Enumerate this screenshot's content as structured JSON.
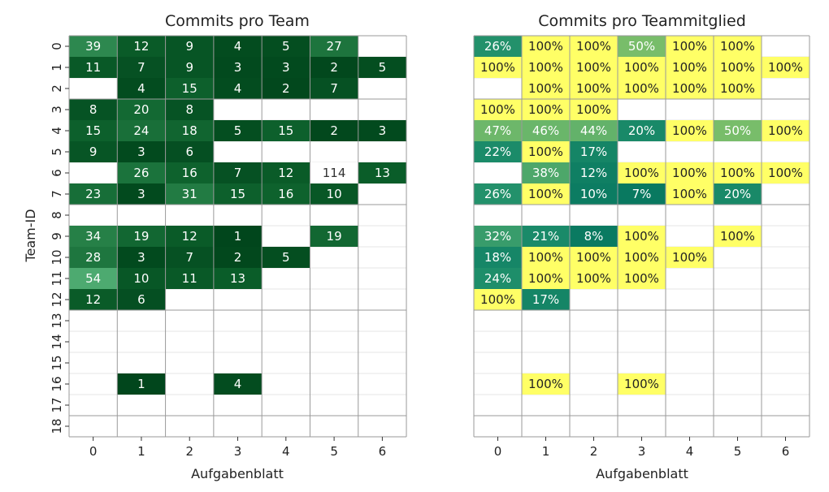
{
  "chart_data": [
    {
      "type": "heatmap",
      "title": "Commits pro Team",
      "xlabel": "Aufgabenblatt",
      "ylabel": "Team-ID",
      "x_categories": [
        "0",
        "1",
        "2",
        "3",
        "4",
        "5",
        "6"
      ],
      "y_categories": [
        "0",
        "1",
        "2",
        "3",
        "4",
        "5",
        "6",
        "7",
        "8",
        "9",
        "10",
        "11",
        "12",
        "13",
        "14",
        "15",
        "16",
        "17",
        "18"
      ],
      "colormap": "greens",
      "values": [
        [
          39,
          12,
          9,
          4,
          5,
          27,
          null
        ],
        [
          11,
          7,
          9,
          3,
          3,
          2,
          5
        ],
        [
          null,
          4,
          15,
          4,
          2,
          7,
          null
        ],
        [
          8,
          20,
          8,
          null,
          null,
          null,
          null
        ],
        [
          15,
          24,
          18,
          5,
          15,
          2,
          3
        ],
        [
          9,
          3,
          6,
          null,
          null,
          null,
          null
        ],
        [
          null,
          26,
          16,
          7,
          12,
          114,
          13
        ],
        [
          23,
          3,
          31,
          15,
          16,
          10,
          null
        ],
        [
          null,
          null,
          null,
          null,
          null,
          null,
          null
        ],
        [
          34,
          19,
          12,
          1,
          null,
          19,
          null
        ],
        [
          28,
          3,
          7,
          2,
          5,
          null,
          null
        ],
        [
          54,
          10,
          11,
          13,
          null,
          null,
          null
        ],
        [
          12,
          6,
          null,
          null,
          null,
          null,
          null
        ],
        [
          null,
          null,
          null,
          null,
          null,
          null,
          null
        ],
        [
          null,
          null,
          null,
          null,
          null,
          null,
          null
        ],
        [
          null,
          null,
          null,
          null,
          null,
          null,
          null
        ],
        [
          null,
          1,
          null,
          4,
          null,
          null,
          null
        ],
        [
          null,
          null,
          null,
          null,
          null,
          null,
          null
        ],
        [
          null,
          null,
          null,
          null,
          null,
          null,
          null
        ]
      ],
      "group_separators_after_rows": [
        2,
        7,
        12,
        17
      ]
    },
    {
      "type": "heatmap",
      "title": "Commits pro Teammitglied",
      "xlabel": "Aufgabenblatt",
      "ylabel": "",
      "x_categories": [
        "0",
        "1",
        "2",
        "3",
        "4",
        "5",
        "6"
      ],
      "y_categories": [
        "0",
        "1",
        "2",
        "3",
        "4",
        "5",
        "6",
        "7",
        "8",
        "9",
        "10",
        "11",
        "12",
        "13",
        "14",
        "15",
        "16",
        "17",
        "18"
      ],
      "colormap": "yellow-green",
      "value_format": "percent",
      "values": [
        [
          26,
          100,
          100,
          50,
          100,
          100,
          null
        ],
        [
          100,
          100,
          100,
          100,
          100,
          100,
          100
        ],
        [
          null,
          100,
          100,
          100,
          100,
          100,
          null
        ],
        [
          100,
          100,
          100,
          null,
          null,
          null,
          null
        ],
        [
          47,
          46,
          44,
          20,
          100,
          50,
          100
        ],
        [
          22,
          100,
          17,
          null,
          null,
          null,
          null
        ],
        [
          null,
          38,
          12,
          100,
          100,
          100,
          100
        ],
        [
          26,
          100,
          10,
          7,
          100,
          20,
          null
        ],
        [
          null,
          null,
          null,
          null,
          null,
          null,
          null
        ],
        [
          32,
          21,
          8,
          100,
          null,
          100,
          null
        ],
        [
          18,
          100,
          100,
          100,
          100,
          null,
          null
        ],
        [
          24,
          100,
          100,
          100,
          null,
          null,
          null
        ],
        [
          100,
          17,
          null,
          null,
          null,
          null,
          null
        ],
        [
          null,
          null,
          null,
          null,
          null,
          null,
          null
        ],
        [
          null,
          null,
          null,
          null,
          null,
          null,
          null
        ],
        [
          null,
          null,
          null,
          null,
          null,
          null,
          null
        ],
        [
          null,
          100,
          null,
          100,
          null,
          null,
          null
        ],
        [
          null,
          null,
          null,
          null,
          null,
          null,
          null
        ],
        [
          null,
          null,
          null,
          null,
          null,
          null,
          null
        ]
      ],
      "group_separators_after_rows": [
        2,
        7,
        12,
        17
      ]
    }
  ]
}
